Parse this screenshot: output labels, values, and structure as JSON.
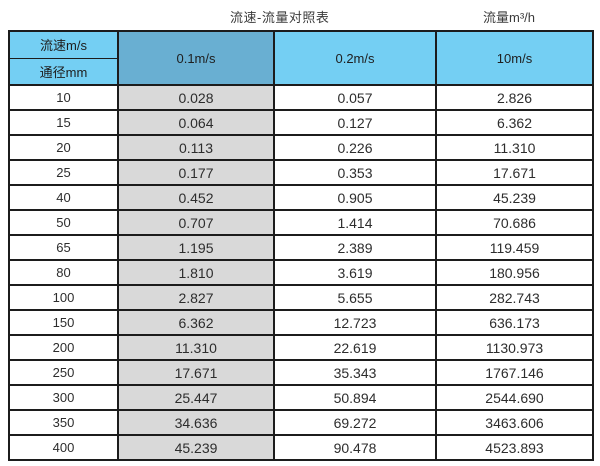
{
  "titles": {
    "main": "流速-流量对照表",
    "unit": "流量m³/h"
  },
  "chart_data": {
    "type": "table",
    "title": "流速-流量对照表",
    "unit_label": "流量m³/h",
    "corner": {
      "top_label": "流速m/s",
      "bottom_label": "通径mm"
    },
    "velocity_columns": [
      "0.1m/s",
      "0.2m/s",
      "10m/s"
    ],
    "rows": [
      {
        "diameter_mm": "10",
        "flows": [
          "0.028",
          "0.057",
          "2.826"
        ]
      },
      {
        "diameter_mm": "15",
        "flows": [
          "0.064",
          "0.127",
          "6.362"
        ]
      },
      {
        "diameter_mm": "20",
        "flows": [
          "0.113",
          "0.226",
          "11.310"
        ]
      },
      {
        "diameter_mm": "25",
        "flows": [
          "0.177",
          "0.353",
          "17.671"
        ]
      },
      {
        "diameter_mm": "40",
        "flows": [
          "0.452",
          "0.905",
          "45.239"
        ]
      },
      {
        "diameter_mm": "50",
        "flows": [
          "0.707",
          "1.414",
          "70.686"
        ]
      },
      {
        "diameter_mm": "65",
        "flows": [
          "1.195",
          "2.389",
          "119.459"
        ]
      },
      {
        "diameter_mm": "80",
        "flows": [
          "1.810",
          "3.619",
          "180.956"
        ]
      },
      {
        "diameter_mm": "100",
        "flows": [
          "2.827",
          "5.655",
          "282.743"
        ]
      },
      {
        "diameter_mm": "150",
        "flows": [
          "6.362",
          "12.723",
          "636.173"
        ]
      },
      {
        "diameter_mm": "200",
        "flows": [
          "11.310",
          "22.619",
          "1130.973"
        ]
      },
      {
        "diameter_mm": "250",
        "flows": [
          "17.671",
          "35.343",
          "1767.146"
        ]
      },
      {
        "diameter_mm": "300",
        "flows": [
          "25.447",
          "50.894",
          "2544.690"
        ]
      },
      {
        "diameter_mm": "350",
        "flows": [
          "34.636",
          "69.272",
          "3463.606"
        ]
      },
      {
        "diameter_mm": "400",
        "flows": [
          "45.239",
          "90.478",
          "4523.893"
        ]
      }
    ]
  },
  "colors": {
    "header_light": "#74cff3",
    "header_dark": "#69afd2",
    "cell_gray": "#d9d9d9",
    "border": "#1c1c1c"
  }
}
